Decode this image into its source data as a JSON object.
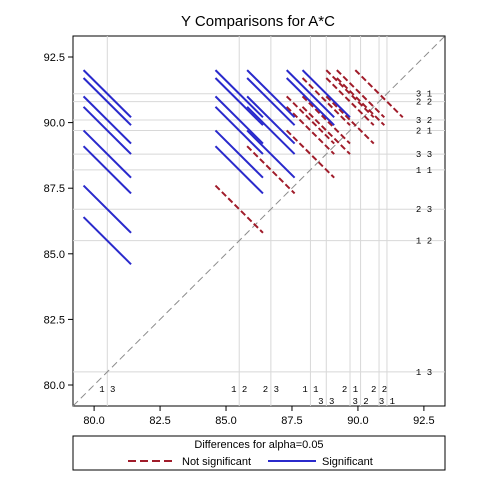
{
  "chart_data": {
    "type": "line",
    "title": "Y Comparisons for A*C",
    "xlim": [
      79.2,
      93.3
    ],
    "ylim": [
      79.2,
      93.3
    ],
    "x_ticks": [
      80.0,
      82.5,
      85.0,
      87.5,
      90.0,
      92.5
    ],
    "y_ticks": [
      80.0,
      82.5,
      85.0,
      87.5,
      90.0,
      92.5
    ],
    "x_tick_labels": [
      "80.0",
      "82.5",
      "85.0",
      "87.5",
      "90.0",
      "92.5"
    ],
    "y_tick_labels": [
      "80.0",
      "82.5",
      "85.0",
      "87.5",
      "90.0",
      "92.5"
    ],
    "diagonal": true,
    "legend": {
      "title": "Differences for alpha=0.05",
      "position": "bottom",
      "entries": [
        {
          "label": "Not significant",
          "color": "#a01c2a",
          "style": "dashed"
        },
        {
          "label": "Significant",
          "color": "#2a2acc",
          "style": "solid"
        }
      ]
    },
    "means": [
      {
        "label": "1 3",
        "value": 80.5
      },
      {
        "label": "1 2",
        "value": 85.5
      },
      {
        "label": "2 3",
        "value": 86.7
      },
      {
        "label": "1 1",
        "value": 88.2
      },
      {
        "label": "3 3",
        "value": 88.8
      },
      {
        "label": "2 1",
        "value": 89.7
      },
      {
        "label": "3 2",
        "value": 90.1
      },
      {
        "label": "2 2",
        "value": 90.8
      },
      {
        "label": "3 1",
        "value": 91.1
      }
    ],
    "x_label_rows": [
      0,
      0,
      0,
      0,
      1,
      0,
      1,
      0,
      1
    ],
    "significant_color": "#2a2acc",
    "not_significant_color": "#a01c2a",
    "diagonal_color": "#8c8c8c",
    "reference_line_color": "#d8d8d8"
  }
}
